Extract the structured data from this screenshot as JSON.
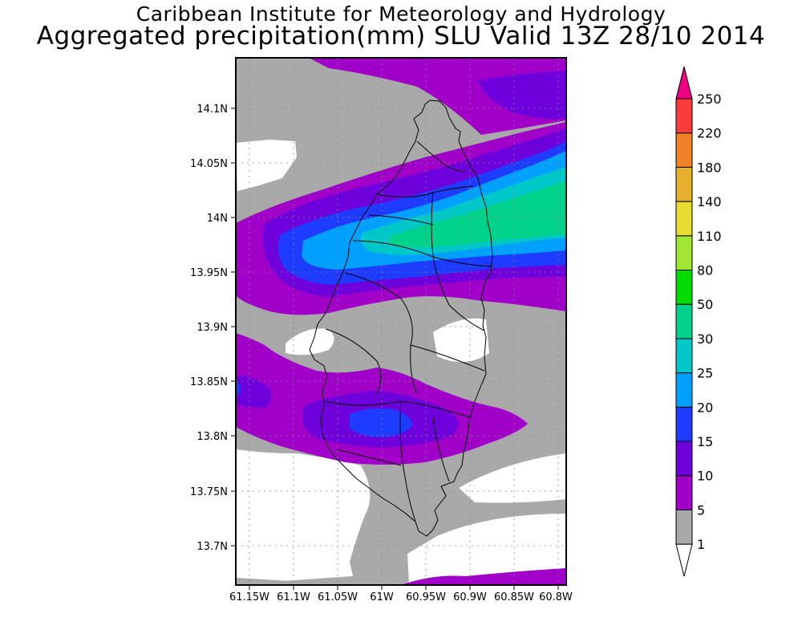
{
  "title": {
    "line1": "Caribbean Institute for Meteorology and Hydrology",
    "line2": "Aggregated precipitation(mm) SLU Valid 13Z 28/10 2014"
  },
  "map": {
    "lat_labels": [
      "14.1N",
      "14.05N",
      "14N",
      "13.95N",
      "13.9N",
      "13.85N",
      "13.8N",
      "13.75N",
      "13.7N"
    ],
    "lon_labels": [
      "61.15W",
      "61.1W",
      "61.05W",
      "61W",
      "60.95W",
      "60.9W",
      "60.85W",
      "60.8W"
    ],
    "extent": {
      "lon_min": -61.17,
      "lon_max": -60.795,
      "lat_min": 13.665,
      "lat_max": 14.145
    },
    "grid": "dotted"
  },
  "colorbar": {
    "levels": [
      "1",
      "5",
      "10",
      "15",
      "20",
      "25",
      "30",
      "50",
      "80",
      "110",
      "140",
      "180",
      "220",
      "250"
    ],
    "colors": [
      "#ffffff",
      "#a9a9a9",
      "#a000c8",
      "#6e00dc",
      "#1e3cff",
      "#00a0ff",
      "#00c8c8",
      "#00d28c",
      "#00dc00",
      "#a0e632",
      "#e6dc32",
      "#e6af2d",
      "#f08228",
      "#fa3c3c",
      "#f00082"
    ]
  },
  "colors": {
    "c1_5": "#a9a9a9",
    "c5_10": "#a000c8",
    "c10_15": "#6e00dc",
    "c15_20": "#1e3cff",
    "c20_25": "#00a0ff",
    "c25_30": "#00c8c8",
    "c30_50": "#00d28c"
  }
}
